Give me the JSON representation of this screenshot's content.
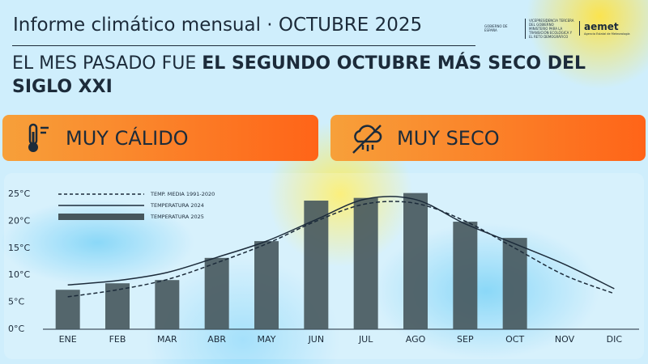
{
  "header": {
    "title": "Informe climático mensual · OCTUBRE 2025",
    "logos": {
      "government": "GOBIERNO DE ESPAÑA",
      "vicepresidency": "VICEPRESIDENCIA TERCERA DEL GOBIERNO",
      "ministry": "MINISTERIO PARA LA TRANSICIÓN ECOLÓGICA Y EL RETO DEMOGRÁFICO",
      "aemet": "aemet",
      "aemet_full": "Agencia Estatal de Meteorología"
    }
  },
  "headline": {
    "normal": "EL MES PASADO FUE",
    "bold": "EL SEGUNDO OCTUBRE MÁS SECO DEL SIGLO XXI"
  },
  "badges": [
    "MUY CÁLIDO",
    "MUY SECO"
  ],
  "chart_data": {
    "type": "bar-line",
    "categories": [
      "ENE",
      "FEB",
      "MAR",
      "ABR",
      "MAY",
      "JUN",
      "JUL",
      "AGO",
      "SEP",
      "OCT",
      "NOV",
      "DIC"
    ],
    "series": [
      {
        "name": "TEMP. MEDIA 1991-2020",
        "type": "line",
        "dashed": true,
        "color": "#1c2b3a",
        "values": [
          6,
          7.3,
          9.2,
          12.3,
          15.8,
          20,
          23.2,
          23.3,
          20,
          15,
          10,
          6.6
        ]
      },
      {
        "name": "TEMPERATURA 2024",
        "type": "line",
        "dashed": false,
        "color": "#1c2b3a",
        "values": [
          8.2,
          9,
          10.5,
          13.3,
          16.3,
          20.3,
          24.1,
          24,
          19.5,
          15.8,
          12,
          7.5
        ]
      },
      {
        "name": "TEMPERATURA 2025",
        "type": "bar",
        "color": "#46565c",
        "values": [
          7.3,
          8.5,
          9.1,
          13.2,
          16.3,
          23.8,
          24.3,
          25.2,
          19.9,
          16.9,
          null,
          null
        ]
      }
    ],
    "ylim": [
      0,
      25
    ],
    "yticks": [
      {
        "value": 0,
        "label": "0°C"
      },
      {
        "value": 5,
        "label": "5°C"
      },
      {
        "value": 10,
        "label": "10°C"
      },
      {
        "value": 15,
        "label": "15°C"
      },
      {
        "value": 20,
        "label": "20°C"
      },
      {
        "value": 25,
        "label": "25°C"
      }
    ]
  }
}
